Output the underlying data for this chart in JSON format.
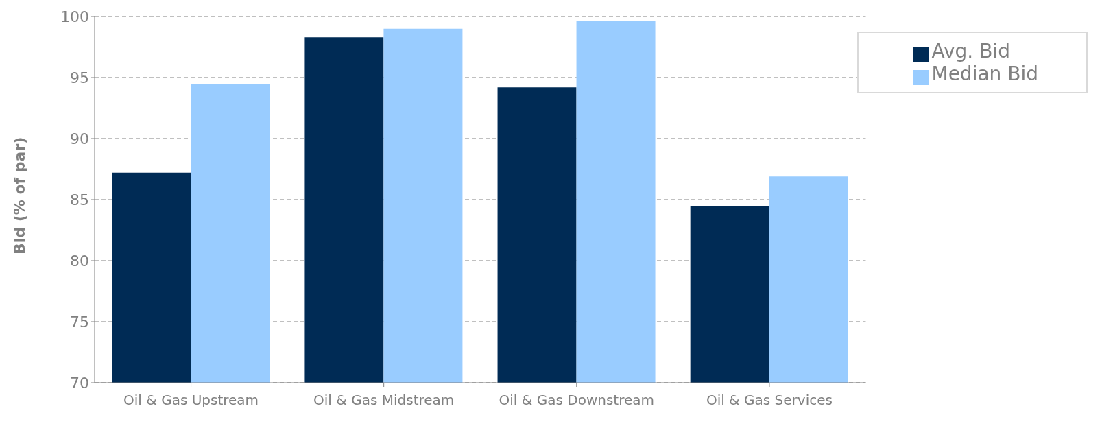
{
  "chart_data": {
    "type": "bar",
    "ylabel": "Bid (% of par)",
    "categories": [
      "Oil & Gas Upstream",
      "Oil & Gas Midstream",
      "Oil & Gas Downstream",
      "Oil & Gas Services"
    ],
    "series": [
      {
        "name": "Avg. Bid",
        "color": "#002b55",
        "values": [
          87.2,
          98.3,
          94.2,
          84.5
        ]
      },
      {
        "name": "Median Bid",
        "color": "#99ccff",
        "values": [
          94.5,
          99.0,
          99.6,
          86.9
        ]
      }
    ],
    "ylim": [
      70,
      100
    ],
    "yticks": [
      70,
      75,
      80,
      85,
      90,
      95,
      100
    ],
    "grid": "y",
    "legend": "top right"
  }
}
